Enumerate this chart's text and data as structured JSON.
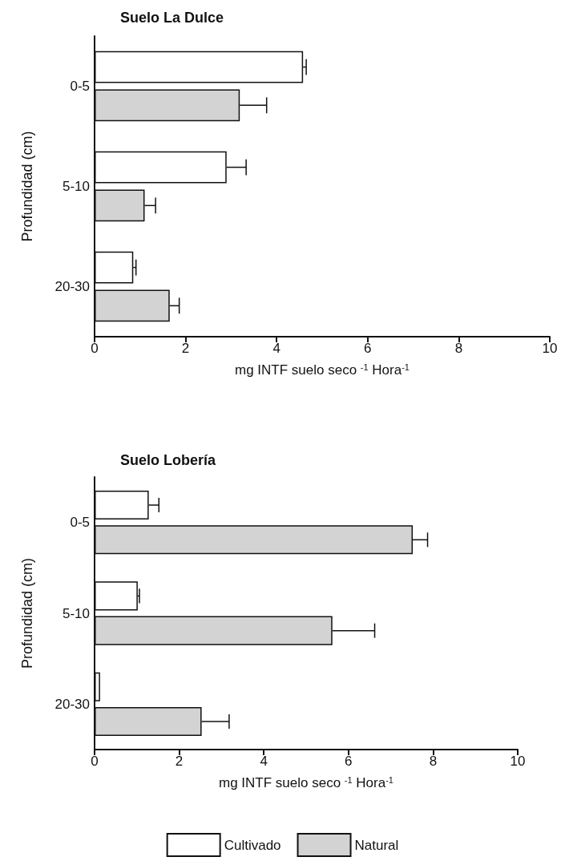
{
  "chart_data": [
    {
      "type": "bar",
      "orientation": "horizontal",
      "title": "Suelo La Dulce",
      "xlabel": "mg INTF suelo seco $^{-1}$ Hora$^{-1}$",
      "ylabel": "Profundidad (cm)",
      "categories": [
        "0-5",
        "5-10",
        "20-30"
      ],
      "xlim": [
        0,
        10
      ],
      "xticks": [
        0,
        2,
        4,
        6,
        8,
        10
      ],
      "grid": false,
      "legend": false,
      "series": [
        {
          "color": "#ffffff",
          "values": [
            4.58,
            2.9,
            0.85
          ],
          "errors": [
            0.07,
            0.43,
            0.06
          ]
        },
        {
          "color": "#d3d3d3",
          "values": [
            3.19,
            1.1,
            1.65
          ],
          "errors": [
            0.59,
            0.24,
            0.21
          ]
        }
      ]
    },
    {
      "type": "bar",
      "orientation": "horizontal",
      "title": "Suelo Lobería",
      "xlabel": "mg INTF suelo seco $^{-1}$ Hora$^{-1}$",
      "ylabel": "Profundidad (cm)",
      "categories": [
        "0-5",
        "5-10",
        "20-30"
      ],
      "xlim": [
        0,
        10
      ],
      "xticks": [
        0,
        2,
        4,
        6,
        8,
        10
      ],
      "grid": false,
      "legend": "bottom",
      "series": [
        {
          "name": "Cultivado",
          "color": "#ffffff",
          "values": [
            1.28,
            1.02,
            0.13
          ],
          "errors": [
            0.24,
            0.04,
            null
          ]
        },
        {
          "name": "Natural",
          "color": "#d3d3d3",
          "values": [
            7.52,
            5.62,
            2.53
          ],
          "errors": [
            0.35,
            1.0,
            0.65
          ]
        }
      ]
    }
  ]
}
